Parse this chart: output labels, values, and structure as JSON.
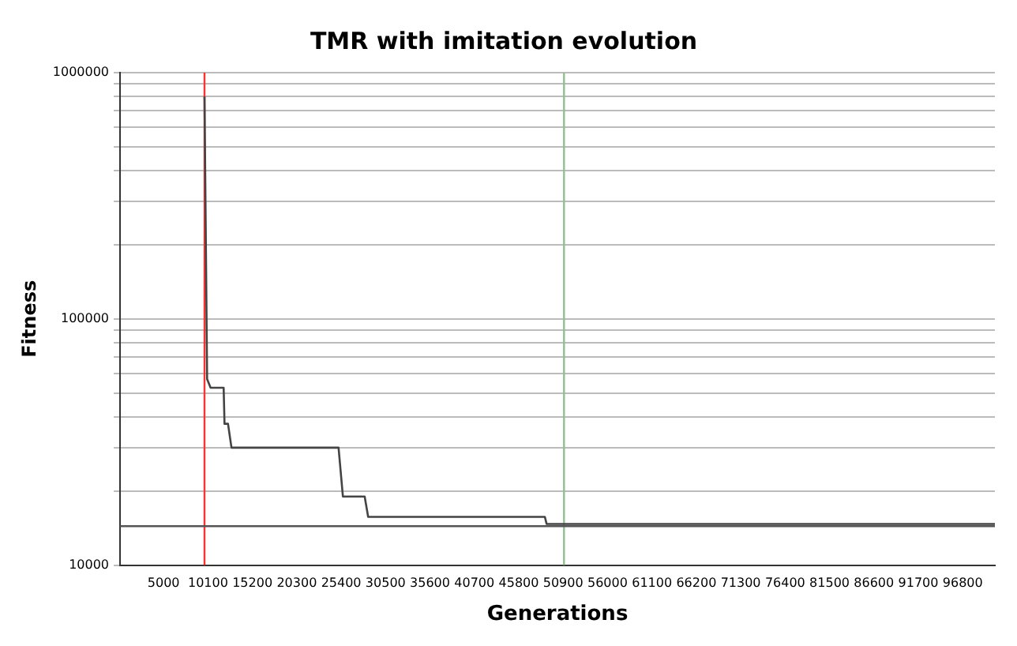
{
  "chart_data": {
    "type": "line",
    "title": "TMR with imitation evolution",
    "xlabel": "Generations",
    "ylabel": "Fitness",
    "x": [
      9700,
      10000,
      10400,
      11900,
      12000,
      12400,
      12800,
      25100,
      25600,
      28100,
      28500,
      48800,
      49000,
      100500
    ],
    "series": [
      {
        "color": "#444444",
        "values": [
          800000,
          57000,
          52500,
          52500,
          37500,
          37500,
          30000,
          30000,
          19000,
          19000,
          15700,
          15700,
          14700,
          14700
        ]
      }
    ],
    "log": "y",
    "xlim": [
      0,
      100500
    ],
    "ylim": [
      10000,
      1000000
    ],
    "xticks": [
      5000,
      10100,
      15200,
      20300,
      25400,
      30500,
      35600,
      40700,
      45800,
      50900,
      56000,
      61100,
      66200,
      71300,
      76400,
      81500,
      86600,
      91700,
      96800
    ],
    "yticks": [
      10000,
      {
        "value": 20000,
        "label": null
      },
      {
        "value": 30000,
        "label": null
      },
      {
        "value": 40000,
        "label": null
      },
      {
        "value": 50000,
        "label": null
      },
      {
        "value": 60000,
        "label": null
      },
      {
        "value": 70000,
        "label": null
      },
      {
        "value": 80000,
        "label": null
      },
      {
        "value": 90000,
        "label": null
      },
      100000,
      {
        "value": 200000,
        "label": null
      },
      {
        "value": 300000,
        "label": null
      },
      {
        "value": 400000,
        "label": null
      },
      {
        "value": 500000,
        "label": null
      },
      {
        "value": 600000,
        "label": null
      },
      {
        "value": 700000,
        "label": null
      },
      {
        "value": 800000,
        "label": null
      },
      {
        "value": 900000,
        "label": null
      },
      1000000
    ],
    "grid": "y",
    "legend": false,
    "marker": "none",
    "line_style": "solid",
    "ref_lines": [
      {
        "axis": "x",
        "value": 9700,
        "color": "#ff3030"
      },
      {
        "axis": "x",
        "value": 51000,
        "color": "#90c090"
      },
      {
        "axis": "y",
        "value": 14400,
        "color": "#555555"
      }
    ]
  }
}
